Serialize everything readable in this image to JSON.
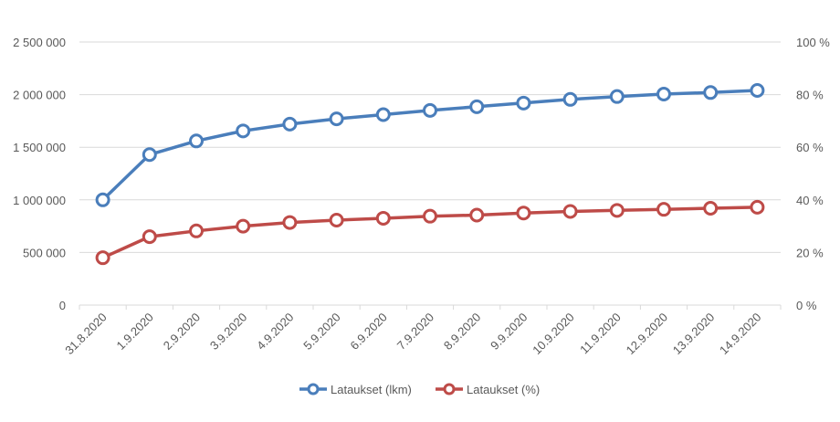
{
  "chart_data": {
    "type": "line",
    "title": "",
    "xlabel": "",
    "ylabel": "",
    "categories": [
      "31.8.2020",
      "1.9.2020",
      "2.9.2020",
      "3.9.2020",
      "4.9.2020",
      "5.9.2020",
      "6.9.2020",
      "7.9.2020",
      "8.9.2020",
      "9.9.2020",
      "10.9.2020",
      "11.9.2020",
      "12.9.2020",
      "13.9.2020",
      "14.9.2020"
    ],
    "ylim": [
      0,
      2500000
    ],
    "y_ticks": [
      "0",
      "500 000",
      "1 000 000",
      "1 500 000",
      "2 000 000",
      "2 500 000"
    ],
    "y2lim": [
      0,
      100
    ],
    "y2_ticks": [
      "0 %",
      "20 %",
      "40 %",
      "60 %",
      "80 %",
      "100 %"
    ],
    "grid": true,
    "legend_position": "bottom",
    "series": [
      {
        "name": "Lataukset (lkm)",
        "axis": "left",
        "color": "#4a7ebb",
        "values": [
          1000000,
          1430000,
          1560000,
          1655000,
          1720000,
          1770000,
          1810000,
          1850000,
          1885000,
          1920000,
          1955000,
          1982000,
          2005000,
          2020000,
          2040000
        ]
      },
      {
        "name": "Lataukset (%)",
        "axis": "right",
        "color": "#be4b48",
        "values": [
          18.0,
          26.0,
          28.2,
          30.0,
          31.4,
          32.3,
          33.0,
          33.8,
          34.2,
          35.0,
          35.6,
          36.0,
          36.4,
          36.8,
          37.2
        ]
      }
    ]
  }
}
